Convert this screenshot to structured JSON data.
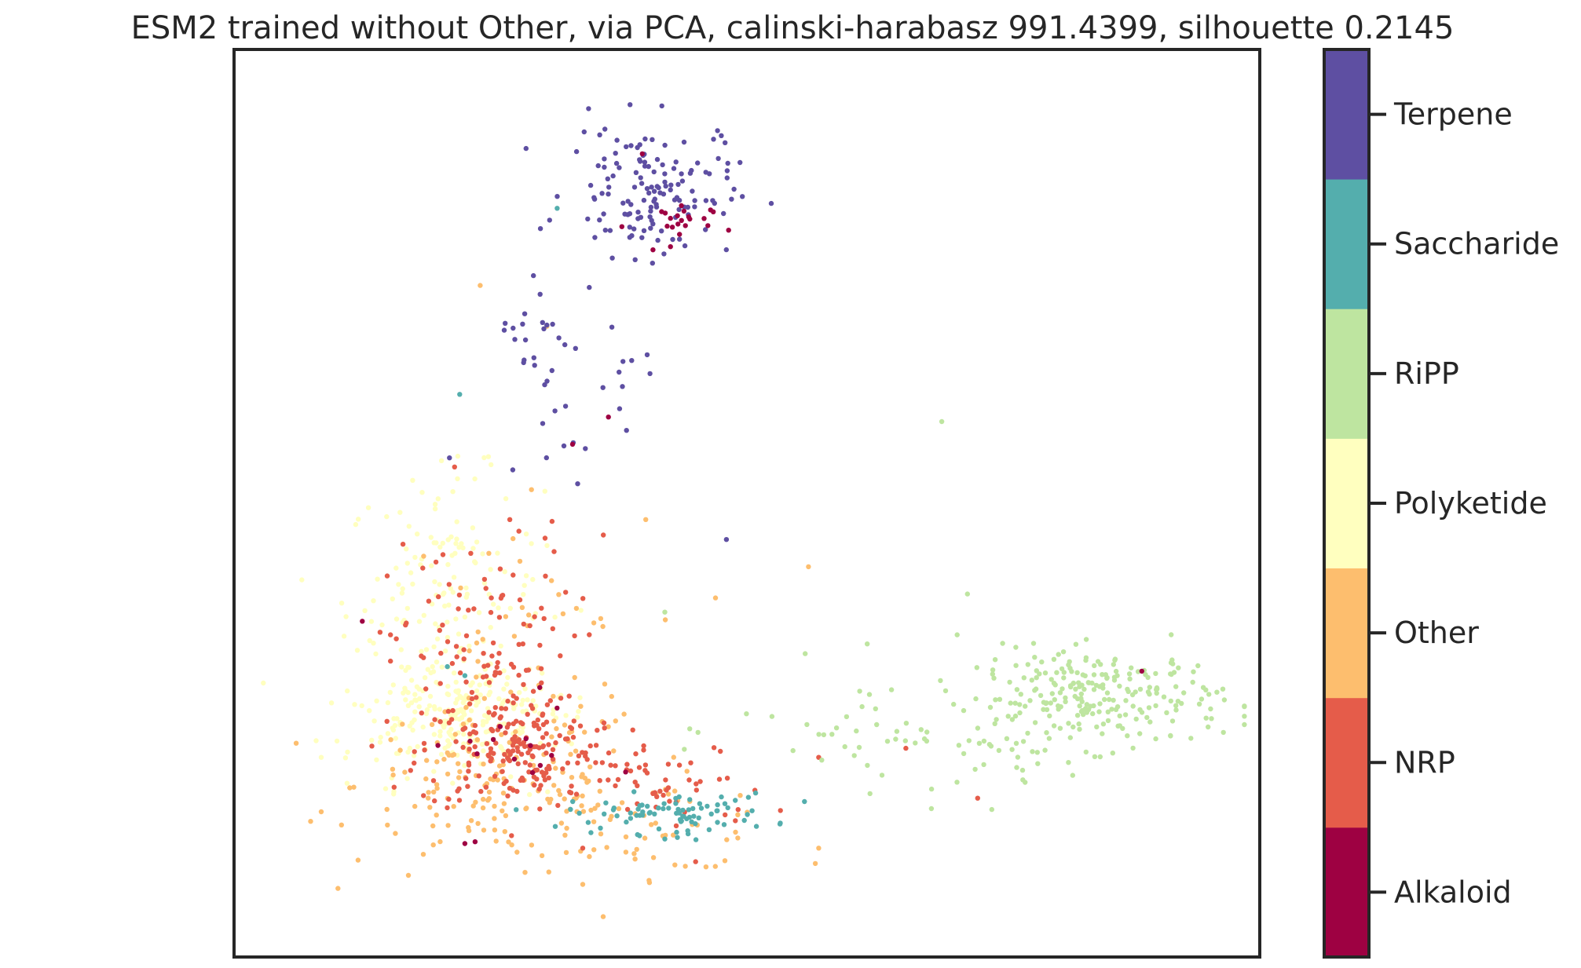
{
  "chart_data": {
    "type": "scatter",
    "title": "ESM2 trained without Other, via PCA, calinski-harabasz 991.4399, silhouette 0.2145",
    "xlabel": "",
    "ylabel": "",
    "x_ticks_shown": false,
    "y_ticks_shown": false,
    "grid": false,
    "xlim": [
      0,
      100
    ],
    "ylim": [
      0,
      100
    ],
    "legend": {
      "kind": "colorbar",
      "placement": "right",
      "entries": [
        {
          "label": "Alkaloid",
          "color": "#9e0142"
        },
        {
          "label": "NRP",
          "color": "#e55c4a"
        },
        {
          "label": "Other",
          "color": "#fdbe6e"
        },
        {
          "label": "Polyketide",
          "color": "#ffffbf"
        },
        {
          "label": "RiPP",
          "color": "#bee5a0"
        },
        {
          "label": "Saccharide",
          "color": "#54aead"
        },
        {
          "label": "Terpene",
          "color": "#5e4fa2"
        }
      ]
    },
    "series": [
      {
        "name": "Terpene",
        "color": "#5e4fa2",
        "clusters": [
          {
            "cx": 40.5,
            "cy": 84.5,
            "sx": 4.0,
            "sy": 3.6,
            "n": 140
          },
          {
            "cx": 30.0,
            "cy": 69.0,
            "sx": 2.2,
            "sy": 4.0,
            "n": 24
          },
          {
            "cx": 38.0,
            "cy": 65.0,
            "sx": 2.0,
            "sy": 3.0,
            "n": 10
          },
          {
            "cx": 31.0,
            "cy": 57.5,
            "sx": 1.5,
            "sy": 2.5,
            "n": 9
          }
        ],
        "points": [
          [
            47.5,
            90.5
          ],
          [
            48.5,
            83.5
          ],
          [
            48.0,
            46.0
          ],
          [
            21.0,
            55.0
          ]
        ]
      },
      {
        "name": "Alkaloid",
        "color": "#9e0142",
        "clusters": [
          {
            "cx": 42.5,
            "cy": 80.5,
            "sx": 2.0,
            "sy": 1.5,
            "n": 22
          },
          {
            "cx": 27.0,
            "cy": 23.5,
            "sx": 4.0,
            "sy": 3.0,
            "n": 14
          }
        ],
        "points": [
          [
            39.8,
            88.5
          ],
          [
            36.5,
            59.5
          ],
          [
            33.0,
            56.5
          ],
          [
            12.5,
            37.0
          ],
          [
            88.5,
            31.5
          ],
          [
            22.5,
            12.5
          ],
          [
            23.5,
            12.7
          ]
        ]
      },
      {
        "name": "NRP",
        "color": "#e55c4a",
        "clusters": [
          {
            "cx": 28.0,
            "cy": 22.5,
            "sx": 5.0,
            "sy": 3.2,
            "n": 170
          },
          {
            "cx": 24.0,
            "cy": 33.0,
            "sx": 4.5,
            "sy": 6.5,
            "n": 120
          },
          {
            "cx": 43.0,
            "cy": 18.5,
            "sx": 4.5,
            "sy": 2.5,
            "n": 45
          }
        ],
        "points": [
          [
            21.5,
            54.0
          ],
          [
            31.0,
            48.0
          ],
          [
            36.0,
            46.5
          ],
          [
            57.0,
            22.0
          ],
          [
            72.5,
            17.5
          ],
          [
            34.0,
            12.0
          ],
          [
            45.0,
            10.5
          ],
          [
            65.5,
            23.0
          ]
        ]
      },
      {
        "name": "Other",
        "color": "#fdbe6e",
        "clusters": [
          {
            "cx": 26.0,
            "cy": 19.0,
            "sx": 7.0,
            "sy": 4.5,
            "n": 150
          },
          {
            "cx": 40.0,
            "cy": 14.5,
            "sx": 7.0,
            "sy": 2.5,
            "n": 60
          },
          {
            "cx": 28.0,
            "cy": 34.0,
            "sx": 6.0,
            "sy": 7.0,
            "n": 40
          }
        ],
        "points": [
          [
            24.0,
            74.0
          ],
          [
            30.5,
            69.5
          ],
          [
            56.0,
            43.0
          ],
          [
            17.0,
            9.0
          ],
          [
            34.0,
            8.0
          ],
          [
            40.5,
            8.2
          ],
          [
            44.0,
            10.0
          ],
          [
            57.0,
            12.0
          ],
          [
            8.5,
            16.0
          ],
          [
            29.0,
            51.5
          ]
        ]
      },
      {
        "name": "Polyketide",
        "color": "#ffffbf",
        "clusters": [
          {
            "cx": 22.0,
            "cy": 26.5,
            "sx": 5.5,
            "sy": 3.2,
            "n": 230
          },
          {
            "cx": 20.5,
            "cy": 40.0,
            "sx": 4.8,
            "sy": 6.5,
            "n": 150
          }
        ],
        "points": [
          [
            10.5,
            39.0
          ],
          [
            8.5,
            22.0
          ],
          [
            9.5,
            28.0
          ],
          [
            26.5,
            50.5
          ]
        ]
      },
      {
        "name": "RiPP",
        "color": "#bee5a0",
        "clusters": [
          {
            "cx": 84.5,
            "cy": 28.5,
            "sx": 6.0,
            "sy": 2.7,
            "n": 240
          },
          {
            "cx": 65.0,
            "cy": 25.0,
            "sx": 8.0,
            "sy": 3.5,
            "n": 50
          },
          {
            "cx": 74.0,
            "cy": 22.0,
            "sx": 3.0,
            "sy": 2.0,
            "n": 15
          }
        ],
        "points": [
          [
            69.0,
            59.0
          ],
          [
            71.5,
            40.0
          ],
          [
            70.5,
            35.5
          ],
          [
            42.0,
            38.0
          ],
          [
            91.5,
            26.0
          ],
          [
            68.0,
            18.5
          ],
          [
            62.0,
            18.0
          ]
        ]
      },
      {
        "name": "Saccharide",
        "color": "#54aead",
        "clusters": [
          {
            "cx": 42.5,
            "cy": 15.8,
            "sx": 5.0,
            "sy": 1.1,
            "n": 85
          }
        ],
        "points": [
          [
            31.5,
            82.5
          ],
          [
            22.0,
            62.0
          ],
          [
            20.8,
            32.0
          ],
          [
            22.5,
            31.0
          ],
          [
            42.0,
            13.0
          ]
        ]
      }
    ]
  }
}
